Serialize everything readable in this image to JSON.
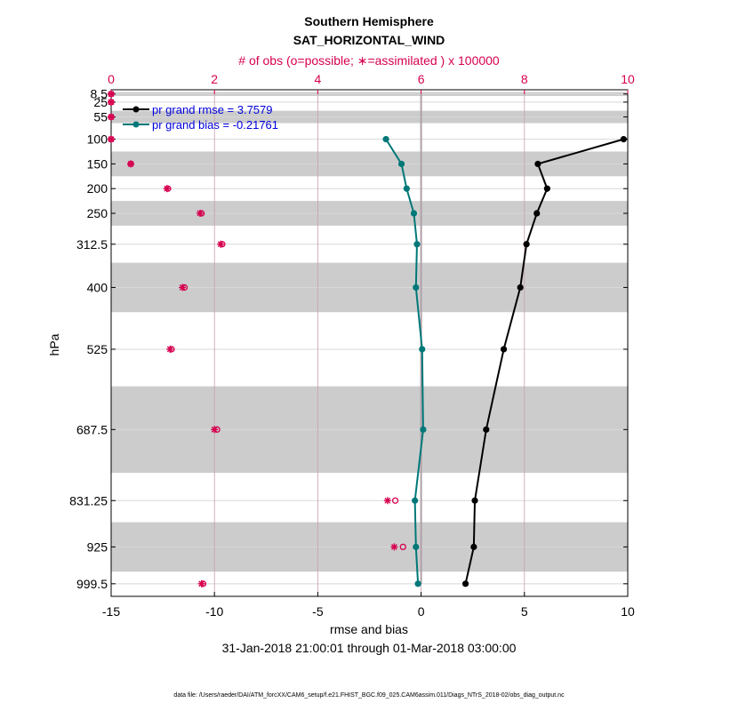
{
  "colors": {
    "rmse": "#000000",
    "bias": "#007878",
    "obs": "#d6004f",
    "band": "#cccccc",
    "legend_text": "#0000dd"
  },
  "chart_data": {
    "type": "line",
    "title": "Southern Hemisphere",
    "subtitle": "SAT_HORIZONTAL_WIND",
    "top_axis_label": "# of obs (o=possible; ∗=assimilated ) x 100000",
    "xlabel": "rmse and bias",
    "ylabel": "hPa",
    "date_range": "31-Jan-2018 21:00:01 through 01-Mar-2018 03:00:00",
    "footnote": "data file: /Users/raeder/DAI/ATM_forcXX/CAM6_setup/f.e21.FHIST_BGC.f09_025.CAM6assim.011/Diags_NTrS_2018-02/obs_diag_output.nc",
    "xlim": [
      -15,
      10
    ],
    "xticks": [
      -15,
      -10,
      -5,
      0,
      5,
      10
    ],
    "xtick_labels": [
      "-15",
      "-10",
      "-5",
      "0",
      "5",
      "10"
    ],
    "top_xlim": [
      0,
      10
    ],
    "top_xticks": [
      0,
      2,
      4,
      6,
      8,
      10
    ],
    "top_xtick_labels": [
      "0",
      "2",
      "4",
      "6",
      "8",
      "10"
    ],
    "ylim": [
      1025,
      0
    ],
    "levels": [
      8.5,
      25,
      55,
      100,
      150,
      200,
      250,
      312.5,
      400,
      525,
      687.5,
      831.25,
      925,
      999.5
    ],
    "level_labels": [
      "8.5",
      "25",
      "55",
      "100",
      "150",
      "200",
      "250",
      "312.5",
      "400",
      "525",
      "687.5",
      "831.25",
      "925",
      "999.5"
    ],
    "bands": [
      [
        4.5,
        12.5
      ],
      [
        42.5,
        67.5
      ],
      [
        125,
        175
      ],
      [
        225,
        275
      ],
      [
        350,
        450
      ],
      [
        600,
        775
      ],
      [
        875,
        975
      ]
    ],
    "series": [
      {
        "name": "rmse",
        "legend": "pr grand rmse = 3.7579",
        "levels": [
          100,
          150,
          200,
          250,
          312.5,
          400,
          525,
          687.5,
          831.25,
          925,
          999.5
        ],
        "values": [
          9.8,
          5.65,
          6.1,
          5.6,
          5.1,
          4.8,
          4.0,
          3.15,
          2.6,
          2.55,
          2.15
        ]
      },
      {
        "name": "bias",
        "legend": "pr grand bias = -0.21761",
        "levels": [
          100,
          150,
          200,
          250,
          312.5,
          400,
          525,
          687.5,
          831.25,
          925,
          999.5
        ],
        "values": [
          -1.7,
          -0.95,
          -0.7,
          -0.35,
          -0.2,
          -0.25,
          0.05,
          0.1,
          -0.3,
          -0.25,
          -0.15
        ]
      }
    ],
    "obs_possible": {
      "levels": [
        8.5,
        25,
        55,
        100,
        150,
        200,
        250,
        312.5,
        400,
        525,
        687.5,
        831.25,
        925,
        999.5
      ],
      "values": [
        0.0,
        0.0,
        0.0,
        0.0,
        0.38,
        1.1,
        1.75,
        2.15,
        1.42,
        1.17,
        2.05,
        5.5,
        5.65,
        1.78
      ]
    },
    "obs_assimilated": {
      "levels": [
        8.5,
        25,
        55,
        100,
        150,
        200,
        250,
        312.5,
        400,
        525,
        687.5,
        831.25,
        925,
        999.5
      ],
      "values": [
        0.0,
        0.0,
        0.0,
        0.0,
        0.38,
        1.08,
        1.72,
        2.12,
        1.38,
        1.14,
        2.0,
        5.35,
        5.48,
        1.75
      ]
    }
  }
}
